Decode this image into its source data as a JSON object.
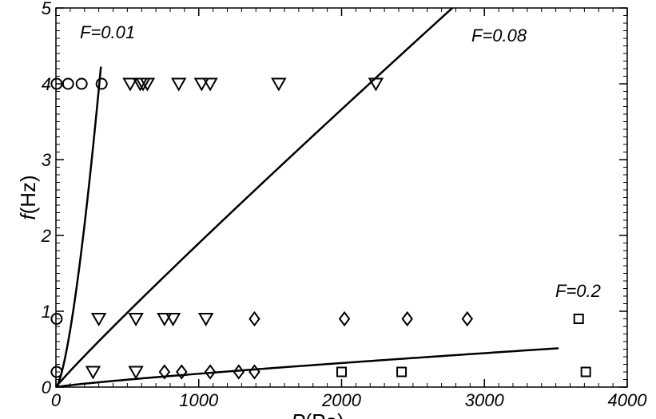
{
  "chart_data": {
    "type": "scatter",
    "xlabel": "P(Pa)",
    "ylabel_italic": "f",
    "ylabel_rest": "(Hz)",
    "xlim": [
      0,
      4000
    ],
    "ylim": [
      0,
      5
    ],
    "xticks": [
      0,
      1000,
      2000,
      3000,
      4000
    ],
    "yticks": [
      0,
      1,
      2,
      3,
      4,
      5
    ],
    "xtick_labels": [
      "0",
      "1000",
      "2000",
      "3000",
      "4000"
    ],
    "ytick_labels": [
      "0",
      "1",
      "2",
      "3",
      "4",
      "5"
    ],
    "grid": false,
    "curves": [
      {
        "label": "F=0.01",
        "k": 0.00525,
        "xmax": 315
      },
      {
        "label": "F=0.08",
        "k": 0.00103,
        "xmax": 2930
      },
      {
        "label": "F=0.2",
        "k": 0.00084,
        "xmax": 3520
      }
    ],
    "series": [
      {
        "marker": "circle",
        "points": [
          {
            "x": 5,
            "y": 4.0
          },
          {
            "x": 85,
            "y": 4.0
          },
          {
            "x": 180,
            "y": 4.0
          },
          {
            "x": 320,
            "y": 4.0
          },
          {
            "x": 5,
            "y": 0.9
          },
          {
            "x": 5,
            "y": 0.2
          }
        ]
      },
      {
        "marker": "triangle-down",
        "points": [
          {
            "x": 520,
            "y": 4.0
          },
          {
            "x": 590,
            "y": 4.0
          },
          {
            "x": 610,
            "y": 4.0
          },
          {
            "x": 640,
            "y": 4.0
          },
          {
            "x": 860,
            "y": 4.0
          },
          {
            "x": 1020,
            "y": 4.0
          },
          {
            "x": 1080,
            "y": 4.0
          },
          {
            "x": 1560,
            "y": 4.0
          },
          {
            "x": 2240,
            "y": 4.0
          },
          {
            "x": 300,
            "y": 0.9
          },
          {
            "x": 560,
            "y": 0.9
          },
          {
            "x": 760,
            "y": 0.9
          },
          {
            "x": 820,
            "y": 0.9
          },
          {
            "x": 1050,
            "y": 0.9
          },
          {
            "x": 260,
            "y": 0.2
          },
          {
            "x": 560,
            "y": 0.2
          }
        ]
      },
      {
        "marker": "diamond",
        "points": [
          {
            "x": 1390,
            "y": 0.9
          },
          {
            "x": 2020,
            "y": 0.9
          },
          {
            "x": 2460,
            "y": 0.9
          },
          {
            "x": 2880,
            "y": 0.9
          },
          {
            "x": 760,
            "y": 0.2
          },
          {
            "x": 880,
            "y": 0.2
          },
          {
            "x": 1080,
            "y": 0.2
          },
          {
            "x": 1280,
            "y": 0.2
          },
          {
            "x": 1390,
            "y": 0.2
          }
        ]
      },
      {
        "marker": "square",
        "points": [
          {
            "x": 3660,
            "y": 0.9
          },
          {
            "x": 2000,
            "y": 0.2
          },
          {
            "x": 2420,
            "y": 0.2
          },
          {
            "x": 3710,
            "y": 0.2
          }
        ]
      }
    ]
  }
}
